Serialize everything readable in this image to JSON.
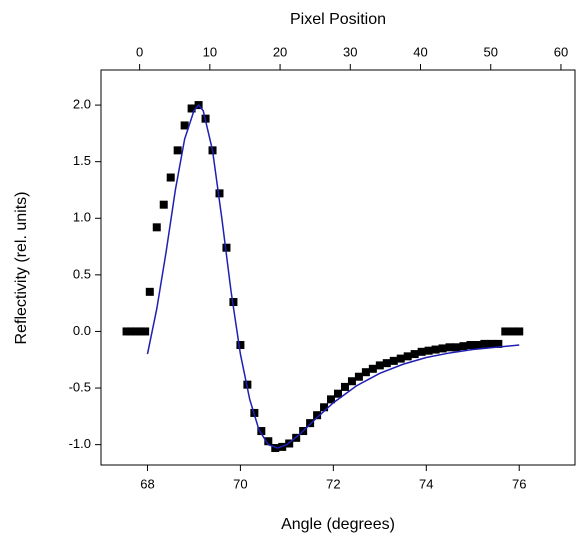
{
  "chart_data": {
    "type": "scatter",
    "xlabel": "Angle (degrees)",
    "ylabel": "Reflectivity (rel. units)",
    "x2label": "Pixel Position",
    "xlim": [
      67,
      77.2
    ],
    "xticks": [
      68,
      70,
      72,
      74,
      76
    ],
    "x2lim": [
      -5.5,
      62
    ],
    "x2ticks": [
      0,
      10,
      20,
      30,
      40,
      50,
      60
    ],
    "ylim": [
      -1.18,
      2.31
    ],
    "yticks": [
      {
        "value": -1,
        "label": "-1.0"
      },
      {
        "value": -0.5,
        "label": "-0.5"
      },
      {
        "value": 0,
        "label": "0.0"
      },
      {
        "value": 0.5,
        "label": "0.5"
      },
      {
        "value": 1,
        "label": "1.0"
      },
      {
        "value": 1.5,
        "label": "1.5"
      },
      {
        "value": 2,
        "label": "2.0"
      }
    ],
    "series": [
      {
        "type": "scatter",
        "color": "#000000",
        "x": [
          67.55,
          67.65,
          67.75,
          67.85,
          67.95,
          68.05,
          68.2,
          68.35,
          68.5,
          68.65,
          68.8,
          68.95,
          69.1,
          69.25,
          69.4,
          69.55,
          69.7,
          69.85,
          70.0,
          70.15,
          70.3,
          70.45,
          70.6,
          70.75,
          70.9,
          71.05,
          71.2,
          71.35,
          71.5,
          71.65,
          71.8,
          71.95,
          72.1,
          72.25,
          72.4,
          72.55,
          72.7,
          72.85,
          73.0,
          73.15,
          73.3,
          73.45,
          73.6,
          73.75,
          73.9,
          74.05,
          74.2,
          74.35,
          74.5,
          74.65,
          74.8,
          74.95,
          75.1,
          75.25,
          75.4,
          75.55,
          75.7,
          75.85,
          76.0
        ],
        "values": [
          0,
          0,
          0,
          0,
          0,
          0.35,
          0.92,
          1.12,
          1.36,
          1.6,
          1.82,
          1.97,
          2.0,
          1.88,
          1.6,
          1.22,
          0.74,
          0.26,
          -0.12,
          -0.47,
          -0.72,
          -0.88,
          -0.97,
          -1.03,
          -1.02,
          -0.99,
          -0.94,
          -0.88,
          -0.81,
          -0.74,
          -0.67,
          -0.6,
          -0.55,
          -0.49,
          -0.44,
          -0.4,
          -0.36,
          -0.33,
          -0.3,
          -0.28,
          -0.26,
          -0.24,
          -0.22,
          -0.2,
          -0.18,
          -0.17,
          -0.16,
          -0.15,
          -0.14,
          -0.14,
          -0.13,
          -0.12,
          -0.12,
          -0.11,
          -0.11,
          -0.11,
          0,
          0,
          0
        ]
      },
      {
        "type": "line",
        "color": "#1f1fb4",
        "x": [
          68,
          68.2,
          68.4,
          68.6,
          68.8,
          69.0,
          69.1,
          69.2,
          69.4,
          69.6,
          69.8,
          70.0,
          70.2,
          70.4,
          70.6,
          70.8,
          71.0,
          71.3,
          71.6,
          72.0,
          72.5,
          73.0,
          73.5,
          74.0,
          74.5,
          75.0,
          75.5,
          76.0
        ],
        "values": [
          -0.2,
          0.2,
          0.7,
          1.25,
          1.7,
          1.95,
          2.0,
          1.95,
          1.6,
          1.0,
          0.35,
          -0.2,
          -0.6,
          -0.87,
          -1.0,
          -1.03,
          -1.0,
          -0.9,
          -0.78,
          -0.63,
          -0.48,
          -0.37,
          -0.29,
          -0.23,
          -0.19,
          -0.16,
          -0.14,
          -0.12
        ]
      }
    ]
  }
}
